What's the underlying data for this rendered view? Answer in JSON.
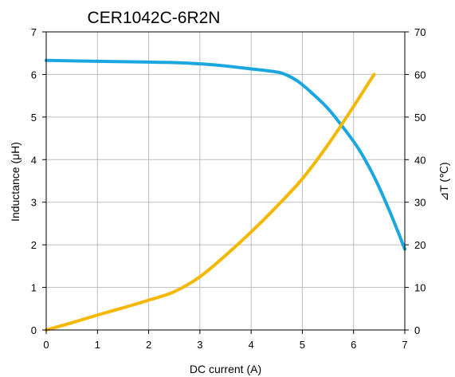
{
  "chart_data": {
    "type": "line",
    "title": "CER1042C-6R2N",
    "xlabel": "DC current (A)",
    "ylabel": "Inductance (μH)",
    "y2label": "⊿T (℃)",
    "xlim": [
      0,
      7
    ],
    "ylim": [
      0,
      7
    ],
    "y2lim": [
      0,
      70
    ],
    "xticks": [
      0,
      1,
      2,
      3,
      4,
      5,
      6,
      7
    ],
    "yticks": [
      0,
      1,
      2,
      3,
      4,
      5,
      6,
      7
    ],
    "y2ticks": [
      0,
      10,
      20,
      30,
      40,
      50,
      60,
      70
    ],
    "grid": true,
    "series": [
      {
        "axis": "left",
        "color": "#1aa7e0",
        "x": [
          0,
          0.5,
          1,
          1.5,
          2,
          2.5,
          3,
          3.5,
          4,
          4.3,
          4.6,
          4.9,
          5.2,
          5.5,
          5.8,
          6.1,
          6.4,
          6.7,
          7
        ],
        "y": [
          6.33,
          6.32,
          6.31,
          6.3,
          6.29,
          6.28,
          6.25,
          6.2,
          6.13,
          6.09,
          6.03,
          5.85,
          5.55,
          5.2,
          4.75,
          4.25,
          3.6,
          2.8,
          1.9
        ]
      },
      {
        "axis": "right",
        "color": "#f5b800",
        "x": [
          0,
          0.5,
          1,
          1.5,
          2,
          2.5,
          3,
          3.5,
          4,
          4.5,
          5,
          5.5,
          6,
          6.4
        ],
        "y": [
          0,
          1.7,
          3.5,
          5.2,
          7,
          9,
          12.5,
          17.5,
          23,
          29,
          35.5,
          43.5,
          52.5,
          60
        ]
      }
    ]
  }
}
